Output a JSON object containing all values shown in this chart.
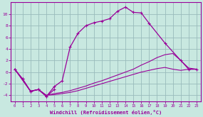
{
  "background_color": "#c8e8e0",
  "line_color": "#990099",
  "grid_color": "#99bbbb",
  "xlabel": "Windchill (Refroidissement éolien,°C)",
  "xlim": [
    -0.5,
    23.5
  ],
  "ylim": [
    -5.0,
    12.0
  ],
  "yticks": [
    -4,
    -2,
    0,
    2,
    4,
    6,
    8,
    10
  ],
  "xticks": [
    0,
    1,
    2,
    3,
    4,
    5,
    6,
    7,
    8,
    9,
    10,
    11,
    12,
    13,
    14,
    15,
    16,
    17,
    18,
    19,
    20,
    21,
    22,
    23
  ],
  "line1_x": [
    0,
    1,
    2,
    3,
    4,
    5,
    6,
    7,
    8,
    9,
    10,
    11,
    12,
    13,
    14,
    15,
    16,
    17,
    19,
    21,
    22,
    23
  ],
  "line1_y": [
    0.5,
    -1.2,
    -3.3,
    -3.0,
    -4.2,
    -2.5,
    -1.5,
    4.3,
    6.7,
    8.0,
    8.5,
    8.8,
    9.2,
    10.5,
    11.2,
    10.3,
    10.2,
    8.4,
    5.0,
    2.0,
    0.5,
    0.5
  ],
  "line2_x": [
    0,
    1,
    2,
    3,
    4,
    5
  ],
  "line2_y": [
    0.5,
    -1.2,
    -3.3,
    -3.0,
    -4.2,
    -3.0
  ],
  "line3_x": [
    0,
    2,
    3,
    4,
    5,
    6,
    7,
    8,
    9,
    10,
    11,
    12,
    13,
    14,
    15,
    16,
    17,
    18,
    19,
    20,
    21,
    22,
    23
  ],
  "line3_y": [
    0.5,
    -3.3,
    -3.0,
    -4.0,
    -3.7,
    -3.5,
    -3.2,
    -2.8,
    -2.4,
    -1.9,
    -1.5,
    -1.0,
    -0.5,
    0.0,
    0.5,
    1.2,
    1.8,
    2.5,
    3.0,
    3.2,
    2.0,
    0.7,
    0.5
  ],
  "line4_x": [
    0,
    2,
    3,
    4,
    5,
    6,
    7,
    8,
    9,
    10,
    11,
    12,
    13,
    14,
    15,
    16,
    17,
    18,
    19,
    20,
    21,
    22,
    23
  ],
  "line4_y": [
    0.5,
    -3.3,
    -3.0,
    -4.0,
    -3.9,
    -3.7,
    -3.5,
    -3.2,
    -2.8,
    -2.4,
    -2.0,
    -1.6,
    -1.2,
    -0.8,
    -0.4,
    0.0,
    0.3,
    0.6,
    0.8,
    0.5,
    0.3,
    0.5,
    0.5
  ]
}
